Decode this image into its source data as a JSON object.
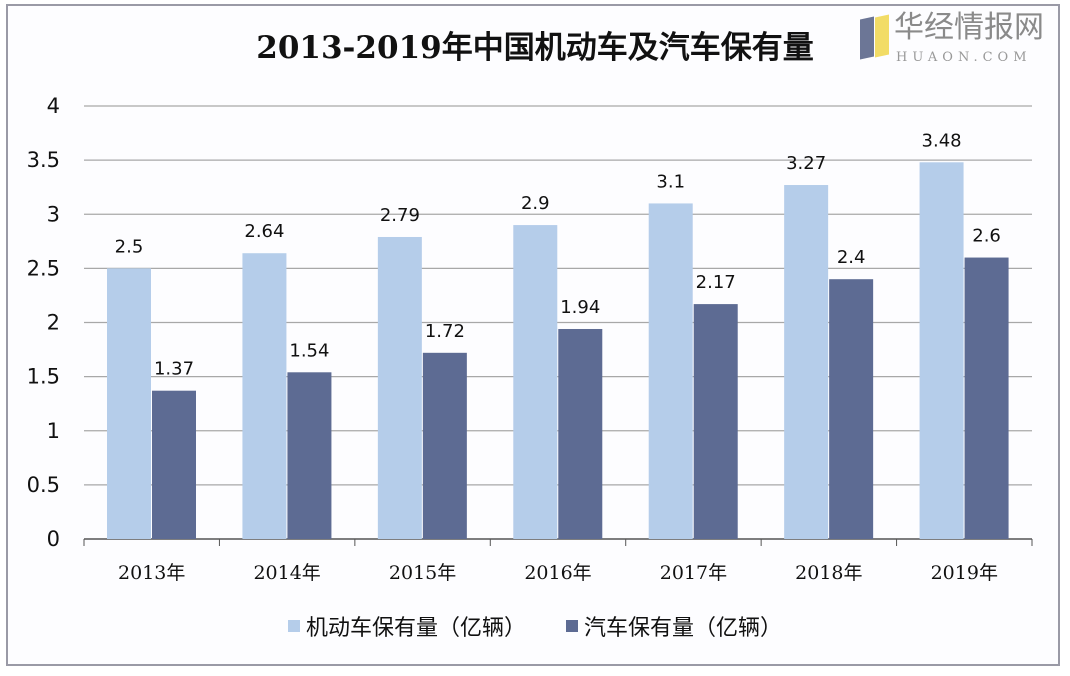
{
  "chart_data": {
    "type": "bar",
    "title": "2013-2019年中国机动车及汽车保有量",
    "categories": [
      "2013年",
      "2014年",
      "2015年",
      "2016年",
      "2017年",
      "2018年",
      "2019年"
    ],
    "series": [
      {
        "name": "机动车保有量（亿辆）",
        "values": [
          2.5,
          2.64,
          2.79,
          2.9,
          3.1,
          3.27,
          3.48
        ],
        "color": "#b5cdea"
      },
      {
        "name": "汽车保有量（亿辆）",
        "values": [
          1.37,
          1.54,
          1.72,
          1.94,
          2.17,
          2.4,
          2.6
        ],
        "color": "#5d6b93"
      }
    ],
    "ylim": [
      0,
      4
    ],
    "yticks": [
      "0",
      "0.5",
      "1",
      "1.5",
      "2",
      "2.5",
      "3",
      "3.5",
      "4"
    ],
    "grid": true,
    "legend": "bottom",
    "xlabel": "",
    "ylabel": ""
  },
  "watermark": {
    "name": "华经情报网",
    "url_text": "HUAON.COM"
  }
}
